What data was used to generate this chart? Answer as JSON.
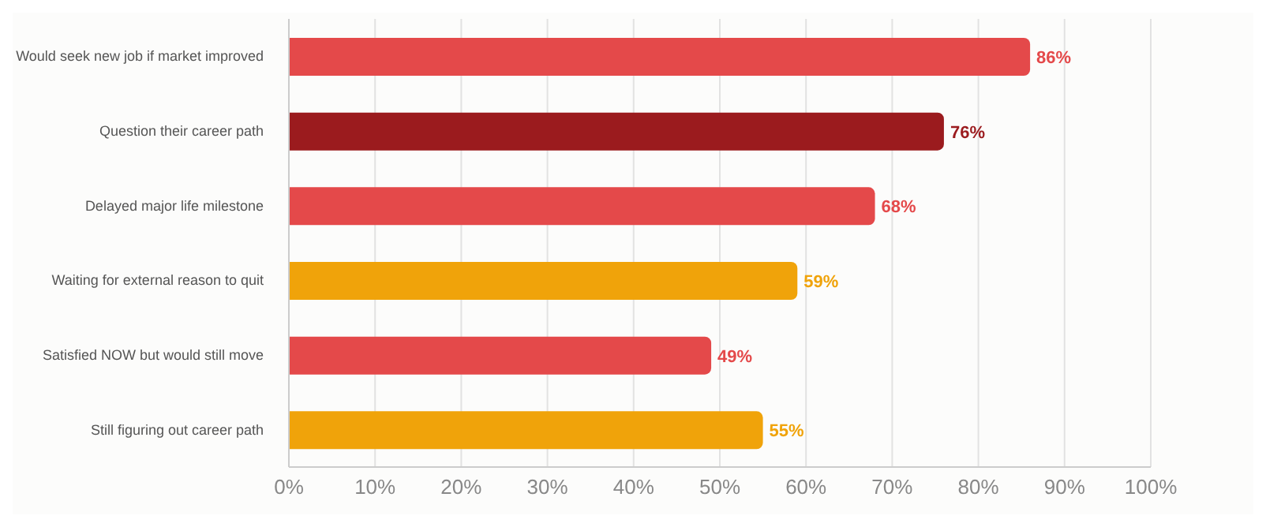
{
  "chart_data": {
    "type": "bar",
    "orientation": "horizontal",
    "categories": [
      "Would seek new job if market improved",
      "Question their career path",
      "Delayed major life milestone",
      "Waiting for external reason to quit",
      "Satisfied NOW but would still move",
      "Still figuring out career path"
    ],
    "values": [
      86,
      76,
      68,
      59,
      49,
      55
    ],
    "colors": [
      "#e4494a",
      "#9b1b1e",
      "#e4494a",
      "#f0a30a",
      "#e4494a",
      "#f0a30a"
    ],
    "value_labels": [
      "86%",
      "76%",
      "68%",
      "59%",
      "49%",
      "55%"
    ],
    "xlim": [
      0,
      100
    ],
    "xticks": [
      {
        "value": 0,
        "label": "0%"
      },
      {
        "value": 10,
        "label": "10%"
      },
      {
        "value": 20,
        "label": "20%"
      },
      {
        "value": 30,
        "label": "30%"
      },
      {
        "value": 40,
        "label": "40%"
      },
      {
        "value": 50,
        "label": "50%"
      },
      {
        "value": 60,
        "label": "60%"
      },
      {
        "value": 70,
        "label": "70%"
      },
      {
        "value": 80,
        "label": "80%"
      },
      {
        "value": 90,
        "label": "90%"
      },
      {
        "value": 100,
        "label": "100%"
      }
    ],
    "grid": "x"
  }
}
